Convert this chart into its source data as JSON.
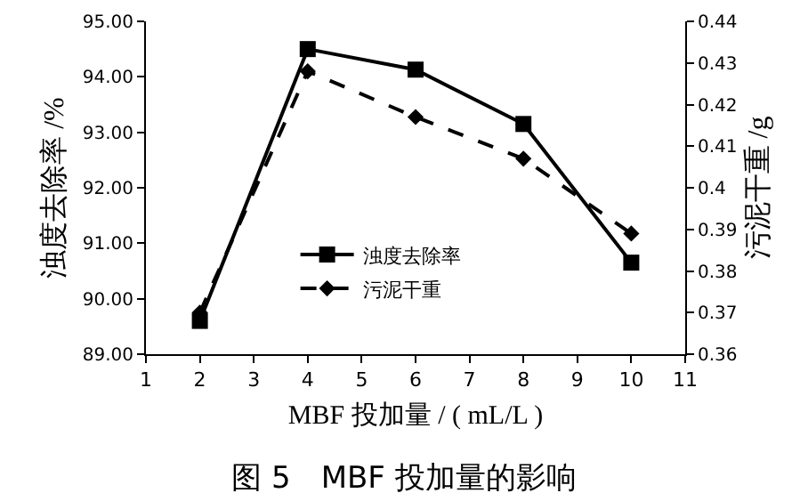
{
  "chart_data": {
    "type": "line",
    "title": "图 5　MBF 投加量的影响",
    "xlabel": "MBF 投加量 / ( mL/L )",
    "ylabel": "浊度去除率 /%",
    "y2label": "污泥干重 /g",
    "x": [
      2,
      4,
      6,
      8,
      10
    ],
    "series": [
      {
        "name": "浊度去除率",
        "color": "#000000",
        "values": [
          89.6,
          94.5,
          94.13,
          93.15,
          90.65
        ],
        "marker": "square",
        "line_style": "solid"
      },
      {
        "name": "污泥干重",
        "color": "#000000",
        "values": [
          0.37,
          0.428,
          0.417,
          0.407,
          0.389
        ],
        "axis": "y2",
        "marker": "diamond",
        "line_style": "dashed"
      }
    ],
    "xlim": [
      1,
      11
    ],
    "xticks": [
      1,
      2,
      3,
      4,
      5,
      6,
      7,
      8,
      9,
      10,
      11
    ],
    "ylim": [
      89,
      95
    ],
    "yticks": [
      {
        "value": 89,
        "label": "89.00"
      },
      {
        "value": 90,
        "label": "90.00"
      },
      {
        "value": 91,
        "label": "91.00"
      },
      {
        "value": 92,
        "label": "92.00"
      },
      {
        "value": 93,
        "label": "93.00"
      },
      {
        "value": 94,
        "label": "94.00"
      },
      {
        "value": 95,
        "label": "95.00"
      }
    ],
    "y2lim": [
      0.36,
      0.44
    ],
    "y2ticks": [
      0.36,
      0.37,
      0.38,
      0.39,
      0.4,
      0.41,
      0.42,
      0.43,
      0.44
    ],
    "grid": false,
    "legend": "bottom"
  }
}
